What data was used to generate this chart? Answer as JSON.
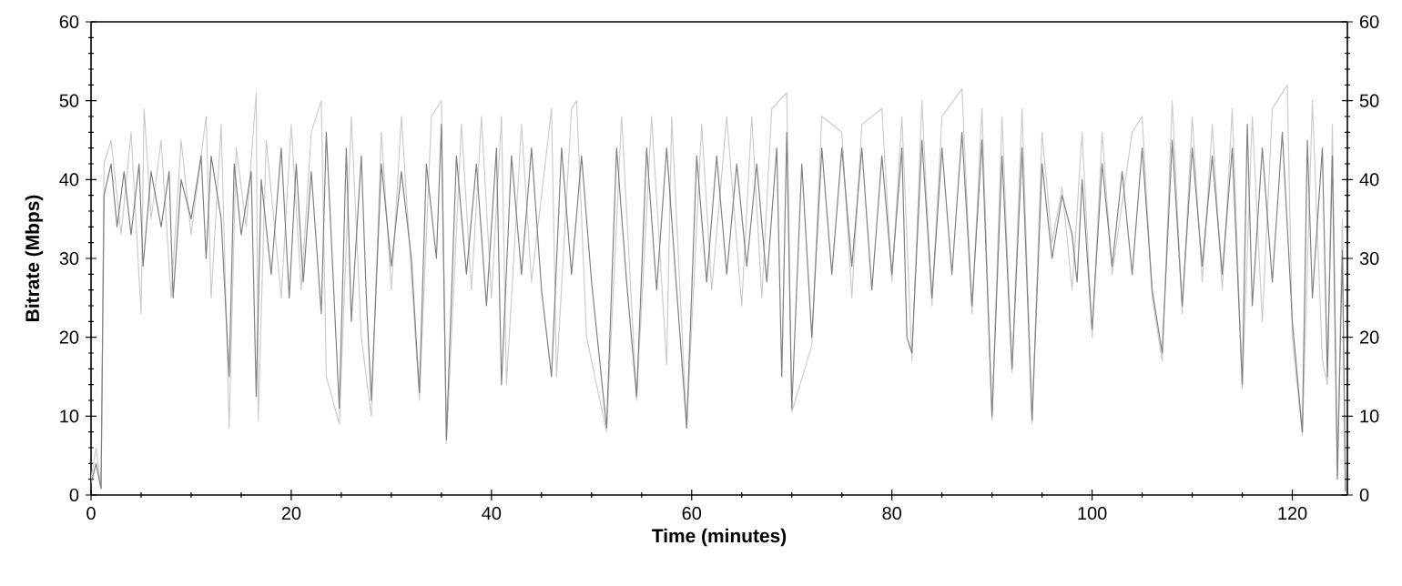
{
  "chart_data": {
    "type": "line",
    "xlabel": "Time (minutes)",
    "ylabel": "Bitrate (Mbps)",
    "xlim": [
      0,
      125.5
    ],
    "xticks": [
      0,
      20,
      40,
      60,
      80,
      100,
      120
    ],
    "ylim": [
      0,
      60
    ],
    "yticks": [
      0,
      10,
      20,
      30,
      40,
      50,
      60
    ],
    "y2lim": [
      0,
      60
    ],
    "y2ticks": [
      0,
      10,
      20,
      30,
      40,
      50,
      60
    ],
    "grid": false,
    "marker": "none",
    "line_style": "solid",
    "series": [
      {
        "color": "#cccccc",
        "x": [
          0,
          0.5,
          1,
          1.3,
          2,
          3,
          4,
          5,
          5.3,
          6,
          7,
          8,
          9,
          10,
          11.5,
          12,
          13,
          13.8,
          14.5,
          15.5,
          16.5,
          16.7,
          17.5,
          19,
          20,
          21,
          22,
          23,
          23.5,
          24.8,
          26,
          27,
          28,
          29,
          30,
          31,
          32.8,
          34,
          35,
          35.5,
          37,
          38,
          39,
          40,
          41,
          41.5,
          43,
          44,
          46,
          46.5,
          48,
          48.5,
          49.5,
          51.5,
          53,
          54.5,
          56,
          57.5,
          58,
          59.5,
          61,
          62,
          63.5,
          65,
          66,
          67,
          68,
          69.5,
          70,
          72,
          73,
          75,
          76,
          77,
          79,
          80,
          81,
          82,
          83,
          84,
          85,
          87,
          88,
          89,
          90,
          91,
          92,
          93,
          94,
          95,
          96,
          97,
          98,
          99,
          100,
          101,
          102,
          104,
          105,
          106,
          107,
          108,
          109,
          110,
          111,
          112,
          113,
          114,
          115,
          116,
          117,
          118,
          119.5,
          120,
          121,
          122,
          123,
          123.5,
          124,
          124.5,
          125,
          125.3
        ],
        "values": [
          2,
          6,
          1,
          42,
          45,
          33,
          46,
          23,
          49,
          35,
          45,
          25,
          45,
          33,
          48,
          25,
          47,
          8.5,
          44,
          34,
          51,
          9.5,
          45,
          25,
          47,
          26,
          46,
          50,
          15,
          9,
          48,
          20,
          10,
          46,
          26,
          48,
          12,
          48,
          50,
          6.5,
          47,
          26,
          48,
          25,
          48,
          14,
          47,
          27,
          49,
          15,
          49,
          50,
          20,
          8,
          48,
          12,
          48,
          16.5,
          48,
          8.5,
          47,
          26,
          48,
          24,
          48,
          25,
          49,
          51,
          10.5,
          19,
          48,
          46,
          25,
          47,
          49,
          27,
          48,
          17,
          50,
          24,
          48,
          51.5,
          23,
          49,
          9.5,
          48,
          15.5,
          49,
          9,
          46,
          32,
          39,
          26,
          46,
          20,
          46,
          28,
          46,
          48,
          25,
          17,
          50,
          23,
          48,
          27,
          47,
          26,
          49,
          13.5,
          48,
          22,
          49,
          52,
          20,
          7.5,
          50,
          17,
          14,
          47,
          2.5,
          35,
          0.3
        ]
      },
      {
        "color": "#808080",
        "x": [
          0,
          0.5,
          1,
          1.3,
          2,
          2.6,
          3.3,
          4,
          4.8,
          5.2,
          6,
          7,
          7.8,
          8.2,
          9,
          10,
          11,
          11.5,
          12,
          13,
          13.8,
          14.3,
          15,
          16,
          16.5,
          17,
          18,
          19,
          19.8,
          20.5,
          21.2,
          22,
          23,
          23.5,
          24.8,
          25.5,
          26,
          27,
          27.5,
          28,
          29,
          30,
          31,
          32,
          32.8,
          33.5,
          34.5,
          35,
          35.5,
          36.5,
          37.5,
          38.5,
          39.5,
          40.5,
          41,
          42,
          43,
          44,
          45,
          46,
          47,
          48,
          49,
          50,
          51.5,
          52.5,
          53.5,
          54.5,
          55.5,
          56.5,
          57.5,
          58.5,
          59.5,
          60.5,
          61.5,
          62.5,
          63.5,
          64.5,
          65.5,
          66.5,
          67.5,
          68.5,
          69,
          69.5,
          70,
          71,
          72,
          73,
          74,
          75,
          76,
          77,
          78,
          79,
          80,
          81,
          81.5,
          82,
          83,
          84,
          85,
          86,
          87,
          88,
          89,
          90,
          91,
          92,
          93,
          94,
          95,
          96,
          97,
          98,
          98.5,
          99,
          100,
          101,
          102,
          103,
          104,
          105,
          106,
          107,
          108,
          109,
          110,
          111,
          112,
          113,
          114,
          115,
          115.5,
          116,
          117,
          118,
          119,
          120,
          121,
          121.5,
          122,
          123,
          123.5,
          124,
          124.5,
          125,
          125.3
        ],
        "values": [
          1.5,
          4,
          0.8,
          38,
          42,
          34,
          41,
          33,
          42,
          29,
          41,
          34,
          41,
          25,
          40,
          35,
          43,
          30,
          43,
          35,
          15,
          42,
          33,
          41,
          12.5,
          40,
          28,
          44,
          25,
          42,
          27,
          41,
          23,
          46,
          11,
          44,
          22,
          43,
          25,
          12,
          42,
          29,
          41,
          30,
          13,
          42,
          30,
          47,
          7,
          43,
          28,
          42,
          24,
          44,
          14,
          43,
          28,
          44,
          26,
          15,
          44,
          28,
          43,
          27,
          8.5,
          44,
          27,
          12.5,
          44,
          26,
          44,
          26,
          8.5,
          43,
          27,
          43,
          28,
          42,
          29,
          42,
          27,
          44,
          15,
          46,
          11,
          42,
          20,
          44,
          28,
          44,
          29,
          44,
          26,
          43,
          28,
          44,
          20,
          18,
          45,
          25,
          44,
          28,
          46,
          24,
          45,
          10,
          43,
          16,
          44,
          9.5,
          42,
          30,
          38,
          33,
          27,
          40,
          21,
          42,
          29,
          41,
          28,
          44,
          26,
          18,
          45,
          24,
          44,
          29,
          43,
          28,
          44,
          14,
          47,
          24,
          44,
          27,
          46,
          22,
          8,
          45,
          25,
          44,
          15,
          43,
          2,
          31,
          0.5
        ]
      }
    ]
  }
}
